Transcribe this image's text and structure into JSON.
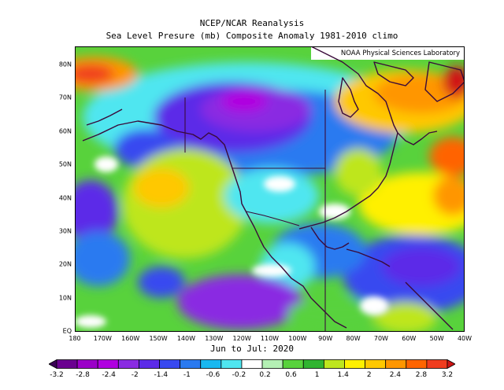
{
  "title_line1": "NCEP/NCAR Reanalysis",
  "title_line2": "Sea Level Presure (mb) Composite Anomaly 1981-2010 climo",
  "credit": "NOAA Physical Sciences Laboratory",
  "period": "Jun to Jul: 2020",
  "lat_labels": [
    "80N",
    "70N",
    "60N",
    "50N",
    "40N",
    "30N",
    "20N",
    "10N",
    "EQ"
  ],
  "lon_labels": [
    "180",
    "170W",
    "160W",
    "150W",
    "140W",
    "130W",
    "120W",
    "110W",
    "100W",
    "90W",
    "80W",
    "70W",
    "60W",
    "50W",
    "40W"
  ],
  "colorbar": {
    "labels": [
      "-3.2",
      "-2.8",
      "-2.4",
      "-2",
      "-1.4",
      "-1",
      "-0.6",
      "-0.2",
      "0.2",
      "0.6",
      "1",
      "1.4",
      "2",
      "2.4",
      "2.8",
      "3.2"
    ],
    "colors": [
      "#3b0056",
      "#6a0090",
      "#9b00c8",
      "#b000e0",
      "#8a2be2",
      "#5c2be8",
      "#3848f0",
      "#2a7af0",
      "#19b8f0",
      "#4fe6f0",
      "#ffffff",
      "#b4f0b4",
      "#58d23c",
      "#30b430",
      "#bee61e",
      "#fff000",
      "#ffc800",
      "#ff9600",
      "#ff6400",
      "#f03c1e",
      "#d01414"
    ]
  },
  "colors": {
    "land_outline": "#3a0a3a",
    "frame": "#000000"
  }
}
